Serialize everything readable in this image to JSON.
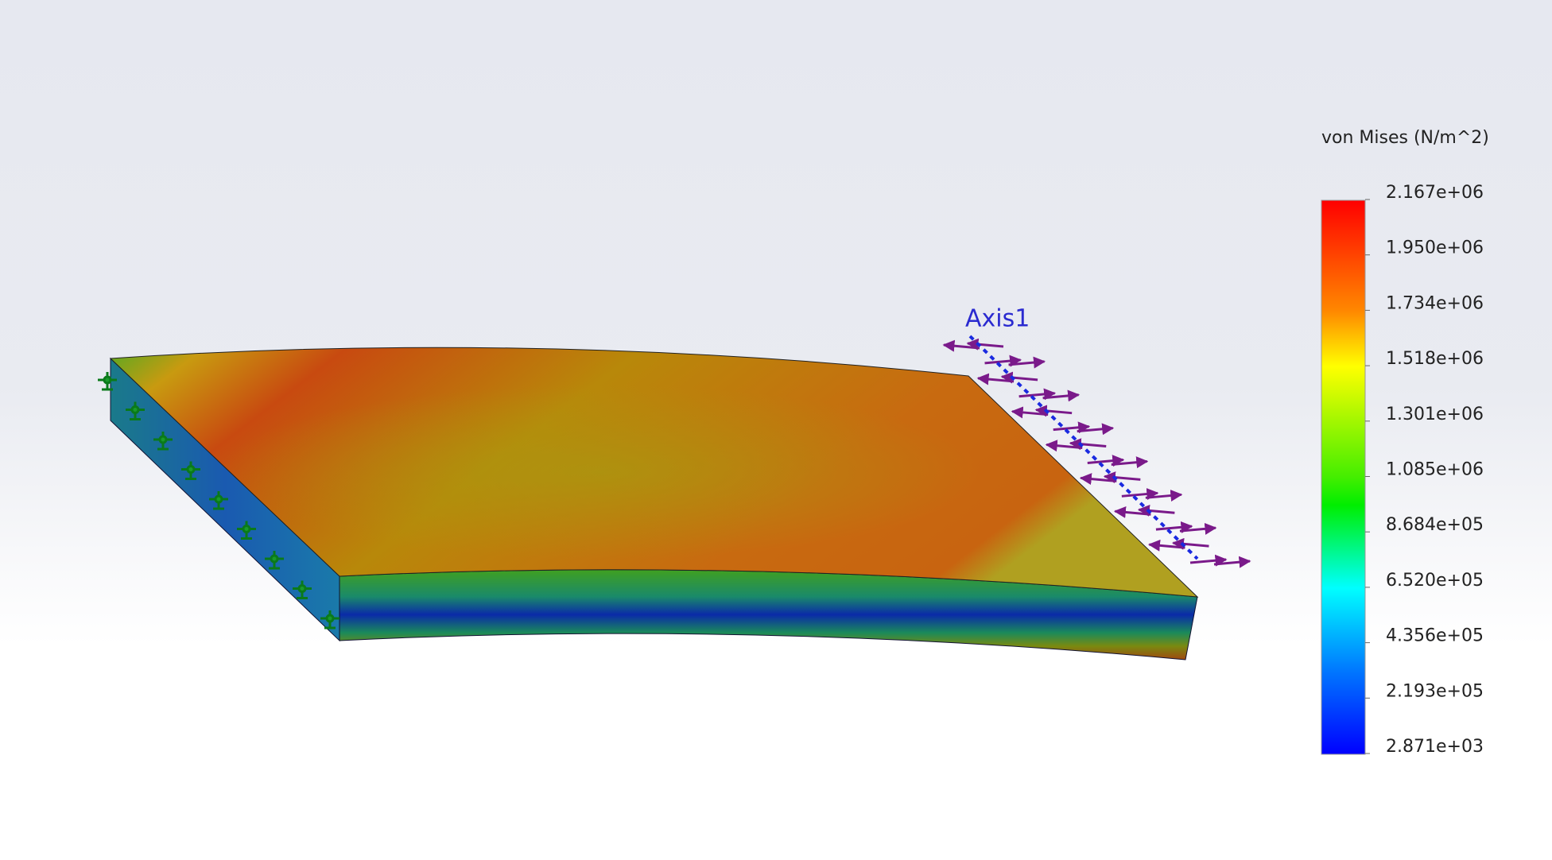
{
  "legend": {
    "title": "von Mises (N/m^2)",
    "ticks": [
      "2.167e+06",
      "1.950e+06",
      "1.734e+06",
      "1.518e+06",
      "1.301e+06",
      "1.085e+06",
      "8.684e+05",
      "6.520e+05",
      "4.356e+05",
      "2.193e+05",
      "2.871e+03"
    ]
  },
  "annotation": {
    "axis_label": "Axis1"
  }
}
